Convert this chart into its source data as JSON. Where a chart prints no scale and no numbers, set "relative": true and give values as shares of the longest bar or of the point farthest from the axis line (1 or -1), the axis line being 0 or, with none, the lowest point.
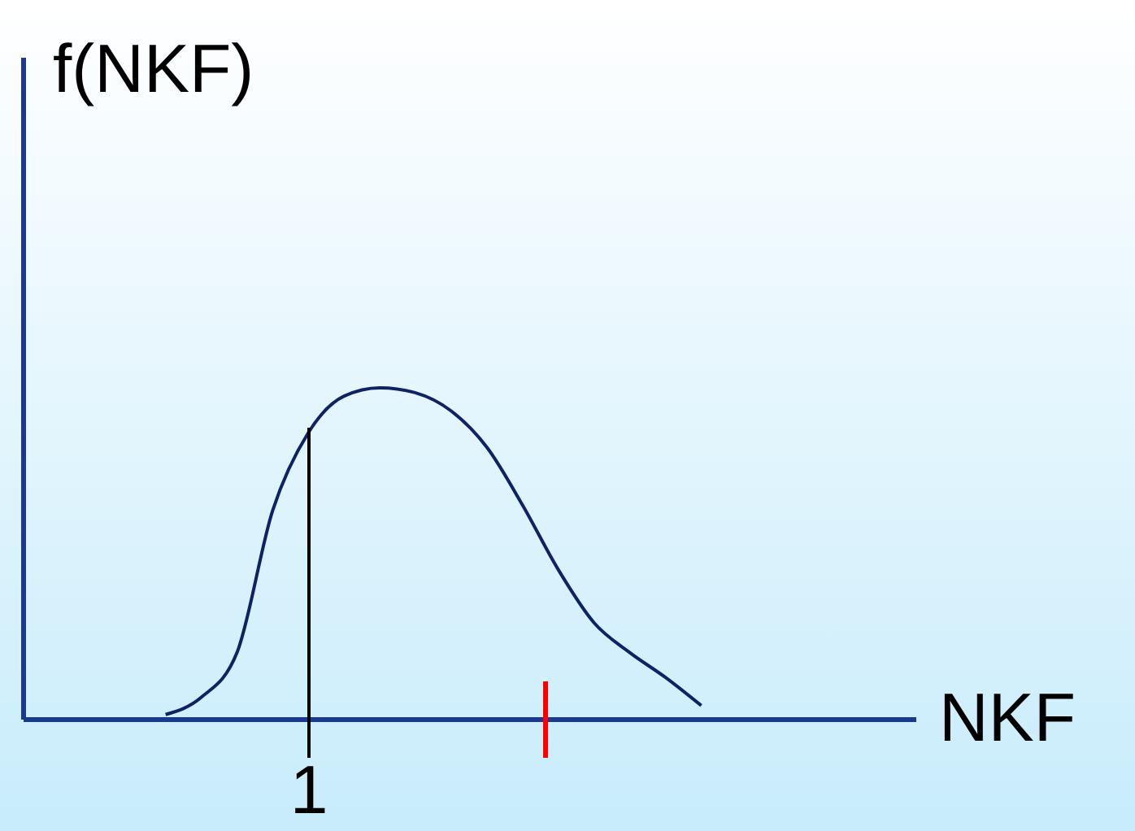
{
  "chart_data": {
    "type": "line",
    "xlabel": "NKF",
    "ylabel": "f(NKF)",
    "relative": true,
    "categories": [
      null,
      null,
      null,
      null,
      null,
      null,
      null,
      null,
      null,
      null,
      null,
      null,
      null,
      null,
      null,
      null,
      null,
      null,
      null,
      null,
      null,
      null,
      null,
      null,
      null,
      null
    ],
    "series": [
      {
        "color": "#0f2266",
        "values": [
          null,
          null,
          null,
          null,
          0.013,
          0.065,
          0.2,
          0.63,
          0.865,
          0.975,
          1.0,
          0.985,
          0.93,
          0.82,
          0.645,
          0.45,
          0.29,
          0.2,
          0.125,
          0.04,
          null,
          null,
          null,
          null,
          null,
          null
        ]
      }
    ],
    "annotations": [
      "1"
    ],
    "marker": "none",
    "line_style": "solid",
    "legend": false
  }
}
